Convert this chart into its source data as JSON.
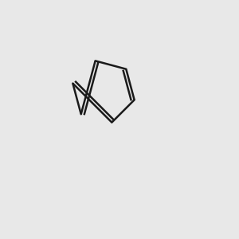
{
  "background_color": "#e8e8e8",
  "bond_color": "#1a1a1a",
  "S_color": "#aaaa00",
  "N_color": "#0000ee",
  "O_color": "#ee0000",
  "F_color": "#cc00cc",
  "line_width": 1.8,
  "figsize": [
    3.0,
    3.0
  ],
  "dpi": 100,
  "xlim": [
    0,
    300
  ],
  "ylim": [
    0,
    300
  ]
}
